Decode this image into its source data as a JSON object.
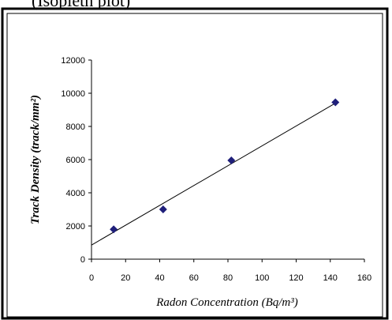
{
  "caption": {
    "text": "(Isopleth plot)"
  },
  "chart_data": {
    "type": "scatter",
    "title": "",
    "xlabel": "Radon Concentration (Bq/m³)",
    "ylabel": "Track Density (track/mm²)",
    "xlim": [
      0,
      160
    ],
    "ylim": [
      0,
      12000
    ],
    "xticks": [
      0,
      20,
      40,
      60,
      80,
      100,
      120,
      140,
      160
    ],
    "yticks": [
      0,
      2000,
      4000,
      6000,
      8000,
      10000,
      12000
    ],
    "grid": false,
    "legend": "none",
    "marker": "diamond",
    "marker_color": "#1f1f7a",
    "points": [
      {
        "x": 13,
        "y": 1800
      },
      {
        "x": 42,
        "y": 3000
      },
      {
        "x": 82,
        "y": 5950
      },
      {
        "x": 143,
        "y": 9450
      }
    ],
    "trendline": {
      "type": "linear",
      "x_range": [
        0,
        143
      ],
      "y_at_start": 850,
      "y_at_end": 9400,
      "color": "#000000"
    }
  }
}
